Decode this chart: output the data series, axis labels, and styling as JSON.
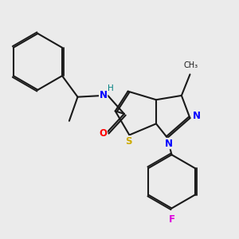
{
  "background_color": "#ebebeb",
  "bond_color": "#1a1a1a",
  "atom_colors": {
    "N": "#0000ff",
    "O": "#ff0000",
    "S": "#ccaa00",
    "F": "#dd00dd",
    "H_on_N": "#008080",
    "C": "#1a1a1a"
  },
  "lw": 1.5,
  "fs": 8.5,
  "fs_small": 7.5
}
